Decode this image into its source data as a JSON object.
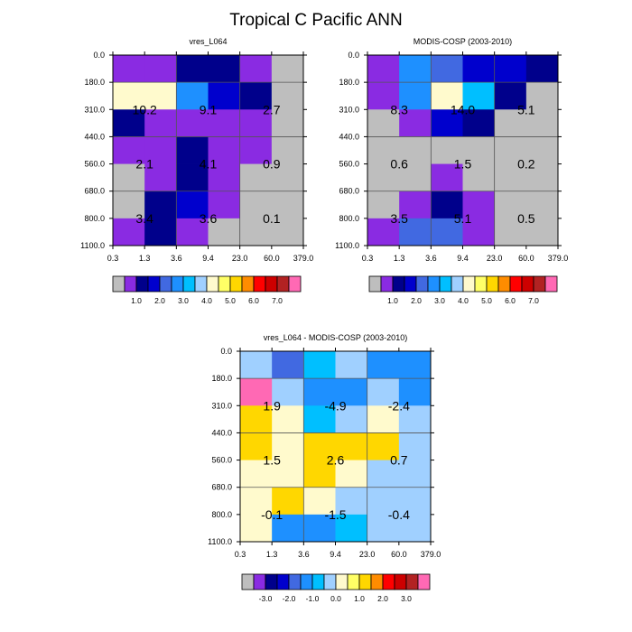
{
  "title": "Tropical C Pacific ANN",
  "chart_data": [
    {
      "type": "heatmap",
      "title": "vres_L064",
      "x_ticks": [
        "0.3",
        "1.3",
        "3.6",
        "9.4",
        "23.0",
        "60.0",
        "379.0"
      ],
      "y_ticks": [
        "0.0",
        "180.0",
        "310.0",
        "440.0",
        "560.0",
        "680.0",
        "800.0",
        "1100.0"
      ],
      "cells": [
        [
          "#8a2be2",
          "#8a2be2",
          "#00008b",
          "#00008b",
          "#8a2be2",
          "#bebebe"
        ],
        [
          "#fffacd",
          "#fffacd",
          "#1e90ff",
          "#0000cd",
          "#00008b",
          "#bebebe"
        ],
        [
          "#00008b",
          "#8a2be2",
          "#8a2be2",
          "#8a2be2",
          "#8a2be2",
          "#bebebe"
        ],
        [
          "#8a2be2",
          "#8a2be2",
          "#00008b",
          "#8a2be2",
          "#8a2be2",
          "#bebebe"
        ],
        [
          "#bebebe",
          "#8a2be2",
          "#00008b",
          "#8a2be2",
          "#bebebe",
          "#bebebe"
        ],
        [
          "#bebebe",
          "#00008b",
          "#0000cd",
          "#8a2be2",
          "#bebebe",
          "#bebebe"
        ],
        [
          "#8a2be2",
          "#00008b",
          "#8a2be2",
          "#bebebe",
          "#bebebe",
          "#bebebe"
        ]
      ],
      "annotations": [
        {
          "row": "high",
          "col": "thin",
          "text": "10.2"
        },
        {
          "row": "high",
          "col": "medium",
          "text": "9.1"
        },
        {
          "row": "high",
          "col": "thick",
          "text": "2.7"
        },
        {
          "row": "mid",
          "col": "thin",
          "text": "2.1"
        },
        {
          "row": "mid",
          "col": "medium",
          "text": "4.1"
        },
        {
          "row": "mid",
          "col": "thick",
          "text": "0.9"
        },
        {
          "row": "low",
          "col": "thin",
          "text": "3.4"
        },
        {
          "row": "low",
          "col": "medium",
          "text": "3.6"
        },
        {
          "row": "low",
          "col": "thick",
          "text": "0.1"
        }
      ],
      "colorbar": {
        "colors": [
          "#bebebe",
          "#8a2be2",
          "#00008b",
          "#0000cd",
          "#4169e1",
          "#1e90ff",
          "#00bfff",
          "#a0d0ff",
          "#fffacd",
          "#ffff66",
          "#ffd700",
          "#ff8c00",
          "#ff0000",
          "#cd0000",
          "#b22222",
          "#ff69b4"
        ],
        "labels": [
          "1.0",
          "2.0",
          "3.0",
          "4.0",
          "5.0",
          "6.0",
          "7.0"
        ]
      }
    },
    {
      "type": "heatmap",
      "title": "MODIS-COSP (2003-2010)",
      "x_ticks": [
        "0.3",
        "1.3",
        "3.6",
        "9.4",
        "23.0",
        "60.0",
        "379.0"
      ],
      "y_ticks": [
        "0.0",
        "180.0",
        "310.0",
        "440.0",
        "560.0",
        "680.0",
        "800.0",
        "1100.0"
      ],
      "cells": [
        [
          "#8a2be2",
          "#1e90ff",
          "#4169e1",
          "#0000cd",
          "#0000cd",
          "#00008b"
        ],
        [
          "#8a2be2",
          "#1e90ff",
          "#fffacd",
          "#00bfff",
          "#00008b",
          "#bebebe"
        ],
        [
          "#bebebe",
          "#8a2be2",
          "#0000cd",
          "#00008b",
          "#bebebe",
          "#bebebe"
        ],
        [
          "#bebebe",
          "#bebebe",
          "#bebebe",
          "#bebebe",
          "#bebebe",
          "#bebebe"
        ],
        [
          "#bebebe",
          "#bebebe",
          "#8a2be2",
          "#bebebe",
          "#bebebe",
          "#bebebe"
        ],
        [
          "#bebebe",
          "#8a2be2",
          "#00008b",
          "#8a2be2",
          "#bebebe",
          "#bebebe"
        ],
        [
          "#8a2be2",
          "#4169e1",
          "#4169e1",
          "#8a2be2",
          "#bebebe",
          "#bebebe"
        ]
      ],
      "annotations": [
        {
          "row": "high",
          "col": "thin",
          "text": "8.3"
        },
        {
          "row": "high",
          "col": "medium",
          "text": "14.0"
        },
        {
          "row": "high",
          "col": "thick",
          "text": "5.1"
        },
        {
          "row": "mid",
          "col": "thin",
          "text": "0.6"
        },
        {
          "row": "mid",
          "col": "medium",
          "text": "1.5"
        },
        {
          "row": "mid",
          "col": "thick",
          "text": "0.2"
        },
        {
          "row": "low",
          "col": "thin",
          "text": "3.5"
        },
        {
          "row": "low",
          "col": "medium",
          "text": "5.1"
        },
        {
          "row": "low",
          "col": "thick",
          "text": "0.5"
        }
      ],
      "colorbar": {
        "colors": [
          "#bebebe",
          "#8a2be2",
          "#00008b",
          "#0000cd",
          "#4169e1",
          "#1e90ff",
          "#00bfff",
          "#a0d0ff",
          "#fffacd",
          "#ffff66",
          "#ffd700",
          "#ff8c00",
          "#ff0000",
          "#cd0000",
          "#b22222",
          "#ff69b4"
        ],
        "labels": [
          "1.0",
          "2.0",
          "3.0",
          "4.0",
          "5.0",
          "6.0",
          "7.0"
        ]
      }
    },
    {
      "type": "heatmap",
      "title": "vres_L064 - MODIS-COSP (2003-2010)",
      "x_ticks": [
        "0.3",
        "1.3",
        "3.6",
        "9.4",
        "23.0",
        "60.0",
        "379.0"
      ],
      "y_ticks": [
        "0.0",
        "180.0",
        "310.0",
        "440.0",
        "560.0",
        "680.0",
        "800.0",
        "1100.0"
      ],
      "cells": [
        [
          "#a0d0ff",
          "#4169e1",
          "#00bfff",
          "#a0d0ff",
          "#1e90ff",
          "#1e90ff"
        ],
        [
          "#ff69b4",
          "#a0d0ff",
          "#1e90ff",
          "#1e90ff",
          "#a0d0ff",
          "#1e90ff"
        ],
        [
          "#ffd700",
          "#fffacd",
          "#00bfff",
          "#a0d0ff",
          "#fffacd",
          "#a0d0ff"
        ],
        [
          "#ffd700",
          "#fffacd",
          "#ffd700",
          "#ffd700",
          "#ffd700",
          "#a0d0ff"
        ],
        [
          "#fffacd",
          "#fffacd",
          "#ffd700",
          "#fffacd",
          "#a0d0ff",
          "#a0d0ff"
        ],
        [
          "#fffacd",
          "#ffd700",
          "#fffacd",
          "#a0d0ff",
          "#a0d0ff",
          "#a0d0ff"
        ],
        [
          "#fffacd",
          "#1e90ff",
          "#1e90ff",
          "#00bfff",
          "#a0d0ff",
          "#a0d0ff"
        ]
      ],
      "annotations": [
        {
          "row": "high",
          "col": "thin",
          "text": "1.9"
        },
        {
          "row": "high",
          "col": "medium",
          "text": "-4.9"
        },
        {
          "row": "high",
          "col": "thick",
          "text": "-2.4"
        },
        {
          "row": "mid",
          "col": "thin",
          "text": "1.5"
        },
        {
          "row": "mid",
          "col": "medium",
          "text": "2.6"
        },
        {
          "row": "mid",
          "col": "thick",
          "text": "0.7"
        },
        {
          "row": "low",
          "col": "thin",
          "text": "-0.1"
        },
        {
          "row": "low",
          "col": "medium",
          "text": "-1.5"
        },
        {
          "row": "low",
          "col": "thick",
          "text": "-0.4"
        }
      ],
      "colorbar": {
        "colors": [
          "#bebebe",
          "#8a2be2",
          "#00008b",
          "#0000cd",
          "#4169e1",
          "#1e90ff",
          "#00bfff",
          "#a0d0ff",
          "#fffacd",
          "#ffff66",
          "#ffd700",
          "#ff8c00",
          "#ff0000",
          "#cd0000",
          "#b22222",
          "#ff69b4"
        ],
        "labels": [
          "-3.0",
          "-2.0",
          "-1.0",
          "0.0",
          "1.0",
          "2.0",
          "3.0"
        ]
      }
    }
  ]
}
